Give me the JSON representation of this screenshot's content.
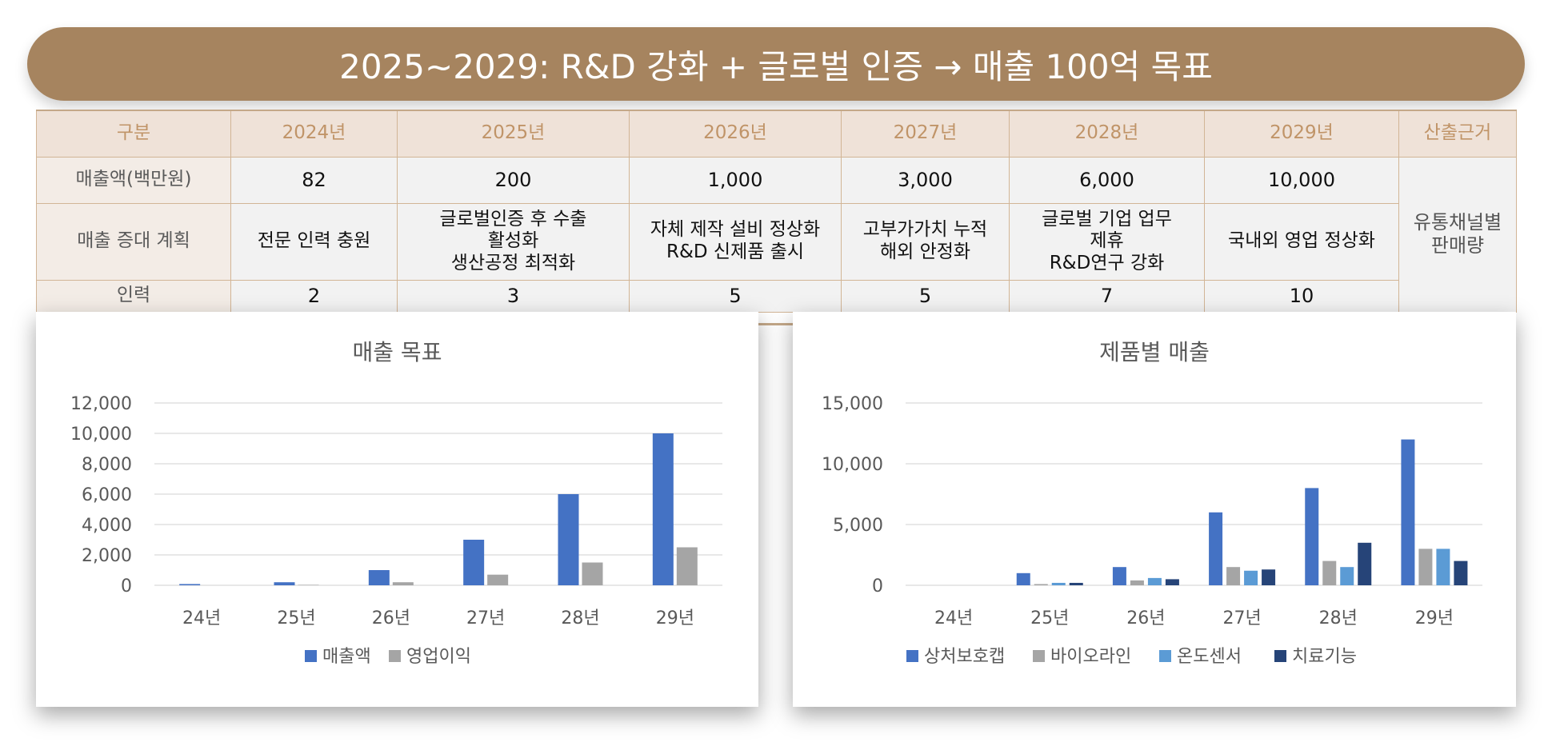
{
  "banner": {
    "title": "2025~2029: R&D 강화 + 글로벌 인증 → 매출 100억 목표"
  },
  "table": {
    "headers": [
      "구분",
      "2024년",
      "2025년",
      "2026년",
      "2027년",
      "2028년",
      "2029년",
      "산출근거"
    ],
    "rows": {
      "sales": {
        "label": "매출액(백만원)",
        "values": [
          "82",
          "200",
          "1,000",
          "3,000",
          "6,000",
          "10,000"
        ]
      },
      "plan": {
        "label": "매출 증대 계획",
        "values": [
          "전문 인력 충원",
          "글로벌인증 후 수출\n활성화\n생산공정 최적화",
          "자체 제작 설비 정상화\nR&D 신제품 출시",
          "고부가가치 누적\n해외 안정화",
          "글로벌 기업 업무\n제휴\nR&D연구 강화",
          "국내외 영업 정상화"
        ]
      },
      "staff": {
        "label": "인력",
        "values": [
          "2",
          "3",
          "5",
          "5",
          "7",
          "10"
        ]
      }
    },
    "basis": "유통채널별\n판매량"
  },
  "chart_data": [
    {
      "type": "bar",
      "title": "매출 목표",
      "categories": [
        "24년",
        "25년",
        "26년",
        "27년",
        "28년",
        "29년"
      ],
      "ylim": [
        0,
        12000
      ],
      "yticks": [
        0,
        2000,
        4000,
        6000,
        8000,
        10000,
        12000
      ],
      "ytick_labels": [
        "0",
        "2,000",
        "4,000",
        "6,000",
        "8,000",
        "10,000",
        "12,000"
      ],
      "grid": true,
      "legend": "bottom",
      "series": [
        {
          "name": "매출액",
          "color": "#4472c4",
          "values": [
            82,
            200,
            1000,
            3000,
            6000,
            10000
          ]
        },
        {
          "name": "영업이익",
          "color": "#a5a5a5",
          "values": [
            0,
            30,
            200,
            700,
            1500,
            2500
          ]
        }
      ]
    },
    {
      "type": "bar",
      "title": "제품별 매출",
      "categories": [
        "24년",
        "25년",
        "26년",
        "27년",
        "28년",
        "29년"
      ],
      "ylim": [
        0,
        15000
      ],
      "yticks": [
        0,
        5000,
        10000,
        15000
      ],
      "ytick_labels": [
        "0",
        "5,000",
        "10,000",
        "15,000"
      ],
      "grid": true,
      "legend": "bottom",
      "series": [
        {
          "name": "상처보호캡",
          "color": "#4472c4",
          "values": [
            0,
            1000,
            1500,
            6000,
            8000,
            12000
          ]
        },
        {
          "name": "바이오라인",
          "color": "#a5a5a5",
          "values": [
            0,
            100,
            400,
            1500,
            2000,
            3000
          ]
        },
        {
          "name": "온도센서",
          "color": "#5b9bd5",
          "values": [
            0,
            200,
            600,
            1200,
            1500,
            3000
          ]
        },
        {
          "name": "치료기능",
          "color": "#264478",
          "values": [
            0,
            200,
            500,
            1300,
            3500,
            2000
          ]
        }
      ]
    }
  ]
}
